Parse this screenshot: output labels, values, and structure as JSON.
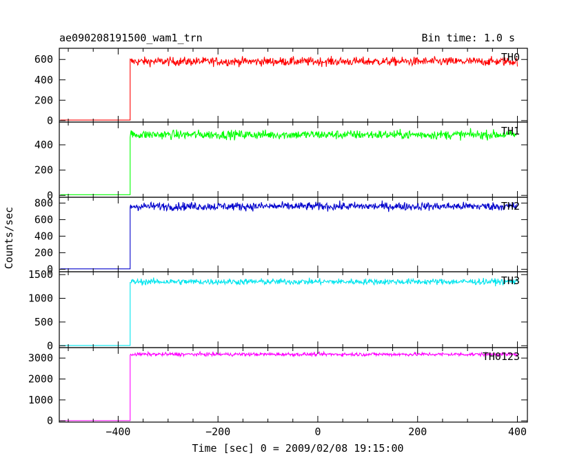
{
  "chart_data": {
    "type": "line",
    "title": "ae090208191500_wam1_trn",
    "subtitle": "Bin time: 1.0 s",
    "xlabel": "Time [sec] 0 = 2009/02/08 19:15:00",
    "ylabel": "Counts/sec",
    "xlim": [
      -518,
      420
    ],
    "xticks": [
      -400,
      -200,
      0,
      200,
      400
    ],
    "step_time": -376,
    "grid": false,
    "panels": [
      {
        "name": "TH0",
        "color": "#ff0000",
        "ylim": [
          -15,
          710
        ],
        "yticks": [
          0,
          200,
          400,
          600
        ],
        "pre_level": 5,
        "post_level": 580,
        "noise": 30
      },
      {
        "name": "TH1",
        "color": "#00ff00",
        "ylim": [
          -15,
          580
        ],
        "yticks": [
          0,
          200,
          400
        ],
        "pre_level": 5,
        "post_level": 480,
        "noise": 25
      },
      {
        "name": "TH2",
        "color": "#0000cc",
        "ylim": [
          -30,
          870
        ],
        "yticks": [
          0,
          200,
          400,
          600,
          800
        ],
        "pre_level": 5,
        "post_level": 760,
        "noise": 35
      },
      {
        "name": "TH3",
        "color": "#00e5ee",
        "ylim": [
          -40,
          1560
        ],
        "yticks": [
          0,
          500,
          1000,
          1500
        ],
        "pre_level": 5,
        "post_level": 1350,
        "noise": 45
      },
      {
        "name": "TH0123",
        "color": "#ff00ff",
        "ylim": [
          -60,
          3500
        ],
        "yticks": [
          0,
          1000,
          2000,
          3000
        ],
        "pre_level": 10,
        "post_level": 3180,
        "noise": 60
      }
    ]
  }
}
